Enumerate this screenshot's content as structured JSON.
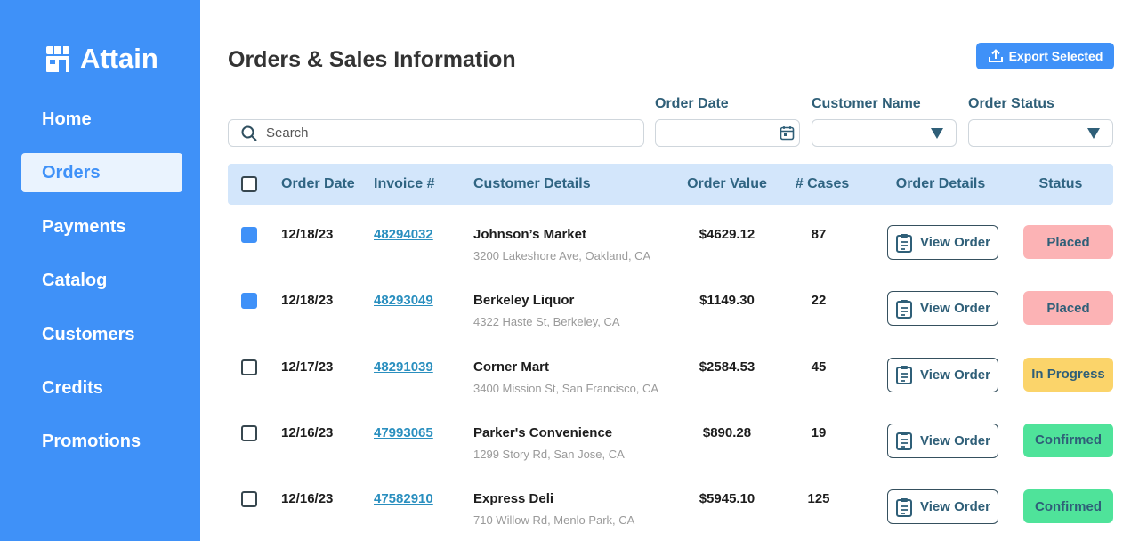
{
  "sidebar": {
    "brand": "Attain",
    "nav": [
      {
        "label": "Home",
        "active": false
      },
      {
        "label": "Orders",
        "active": true
      },
      {
        "label": "Payments",
        "active": false
      },
      {
        "label": "Catalog",
        "active": false
      },
      {
        "label": "Customers",
        "active": false
      },
      {
        "label": "Credits",
        "active": false
      },
      {
        "label": "Promotions",
        "active": false
      }
    ]
  },
  "header": {
    "title": "Orders & Sales Information",
    "export_button": "Export Selected"
  },
  "filters": {
    "search_placeholder": "Search",
    "order_date": "Order Date",
    "customer_name": "Customer Name",
    "order_status": "Order Status"
  },
  "table": {
    "columns": [
      "Order Date",
      "Invoice #",
      "Customer Details",
      "Order Value",
      "# Cases",
      "Order Details",
      "Status"
    ],
    "rows": [
      {
        "checked": true,
        "date": "12/18/23",
        "invoice": "48294032",
        "customer": "Johnson’s Market",
        "address": "3200 Lakeshore Ave, Oakland, CA",
        "value": "$4629.12",
        "cases": 87,
        "action": "View Order",
        "status": "Placed",
        "status_color": "#fcb3b5"
      },
      {
        "checked": true,
        "date": "12/18/23",
        "invoice": "48293049",
        "customer": "Berkeley Liquor",
        "address": "4322 Haste St, Berkeley, CA",
        "value": "$1149.30",
        "cases": 22,
        "action": "View Order",
        "status": "Placed",
        "status_color": "#fcb3b5"
      },
      {
        "checked": false,
        "date": "12/17/23",
        "invoice": "48291039",
        "customer": "Corner Mart",
        "address": "3400 Mission St, San Francisco, CA",
        "value": "$2584.53",
        "cases": 45,
        "action": "View Order",
        "status": "In Progress",
        "status_color": "#fbd46a"
      },
      {
        "checked": false,
        "date": "12/16/23",
        "invoice": "47993065",
        "customer": "Parker's Convenience",
        "address": "1299 Story Rd, San Jose, CA",
        "value": "$890.28",
        "cases": 19,
        "action": "View Order",
        "status": "Confirmed",
        "status_color": "#4fe39a"
      },
      {
        "checked": false,
        "date": "12/16/23",
        "invoice": "47582910",
        "customer": "Express Deli",
        "address": "710 Willow Rd, Menlo Park, CA",
        "value": "$5945.10",
        "cases": 125,
        "action": "View Order",
        "status": "Confirmed",
        "status_color": "#4fe39a"
      }
    ]
  }
}
